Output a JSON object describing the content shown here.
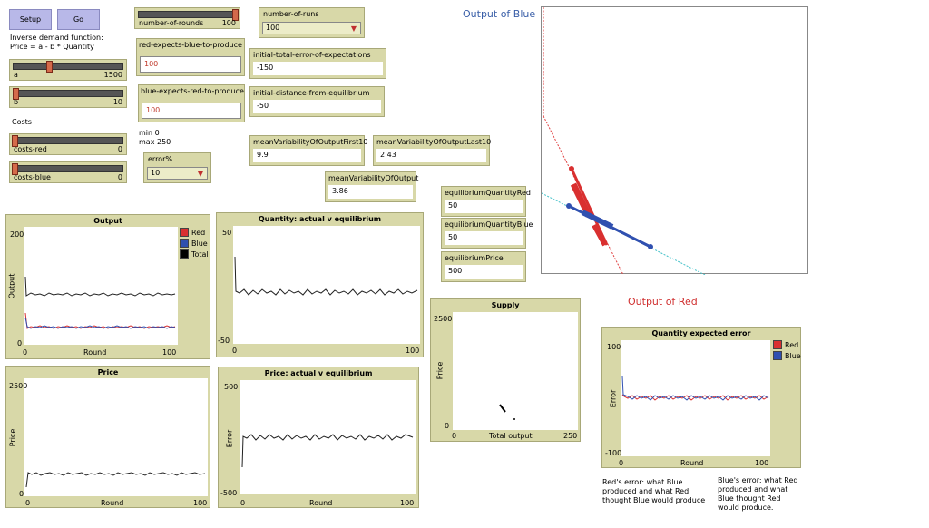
{
  "buttons": {
    "setup": "Setup",
    "go": "Go"
  },
  "notes": {
    "demand": "Inverse demand function:\nPrice = a - b * Quantity",
    "costs": "Costs",
    "error_range": "min 0\nmax 250",
    "red_error": "Red's error: what Blue\nproduced and what Red\nthought Blue would produce",
    "blue_error": "Blue's error: what Red\nproduced and what\nBlue thought Red\nwould produce."
  },
  "sliders": {
    "a": {
      "label": "a",
      "value": "1500",
      "fraction": 0.33
    },
    "b": {
      "label": "b",
      "value": "10",
      "fraction": 0.02
    },
    "costs_red": {
      "label": "costs-red",
      "value": "0",
      "fraction": 0.0
    },
    "costs_blue": {
      "label": "costs-blue",
      "value": "0",
      "fraction": 0.0
    },
    "rounds": {
      "label": "number-of-rounds",
      "value": "100",
      "fraction": 1.0
    }
  },
  "choosers": {
    "runs": {
      "label": "number-of-runs",
      "value": "100"
    },
    "error": {
      "label": "error%",
      "value": "10"
    }
  },
  "inputs": {
    "red_expects": {
      "label": "red-expects-blue-to-produce",
      "value": "100"
    },
    "blue_expects": {
      "label": "blue-expects-red-to-produce",
      "value": "100"
    }
  },
  "monitors": {
    "init_total_error": {
      "label": "initial-total-error-of-expectations",
      "value": "-150"
    },
    "init_distance": {
      "label": "initial-distance-from-equilibrium",
      "value": "-50"
    },
    "var_first10": {
      "label": "meanVariabilityOfOutputFirst10",
      "value": "9.9"
    },
    "var_last10": {
      "label": "meanVariabilityOfOutputLast10",
      "value": "2.43"
    },
    "var_output": {
      "label": "meanVariabilityOfOutput",
      "value": "3.86"
    },
    "eq_q_red": {
      "label": "equilibriumQuantityRed",
      "value": "50"
    },
    "eq_q_blue": {
      "label": "equilibriumQuantityBlue",
      "value": "50"
    },
    "eq_price": {
      "label": "equilibriumPrice",
      "value": "500"
    }
  },
  "view": {
    "output_of_blue": "Output of Blue",
    "output_of_red": "Output of Red",
    "colors": {
      "red": "#d93030",
      "blue": "#3050b0",
      "title_blue": "#3a5fa8",
      "title_red": "#d03030",
      "teal": "#40c0c8"
    }
  },
  "plots": {
    "output": {
      "title": "Output",
      "ylabel": "Output",
      "xlabel": "Round",
      "ymin": "0",
      "ymax": "200",
      "xmin": "0",
      "xmax": "100",
      "legend": [
        "Red",
        "Blue",
        "Total"
      ]
    },
    "quantity": {
      "title": "Quantity: actual v equilibrium",
      "ymin": "-50",
      "ymax": "50",
      "xmin": "0",
      "xmax": "100"
    },
    "price": {
      "title": "Price",
      "ylabel": "Price",
      "xlabel": "Round",
      "ymin": "0",
      "ymax": "2500",
      "xmin": "0",
      "xmax": "100"
    },
    "price_eq": {
      "title": "Price: actual v equilibrium",
      "ylabel": "Error",
      "xlabel": "Round",
      "ymin": "-500",
      "ymax": "500",
      "xmin": "0",
      "xmax": "100"
    },
    "supply": {
      "title": "Supply",
      "ylabel": "Price",
      "xlabel": "Total output",
      "ymin": "0",
      "ymax": "2500",
      "xmin": "0",
      "xmax": "250"
    },
    "qerror": {
      "title": "Quantity expected error",
      "ylabel": "Error",
      "xlabel": "Round",
      "ymin": "-100",
      "ymax": "100",
      "xmin": "0",
      "xmax": "100",
      "legend": [
        "Red",
        "Blue"
      ]
    }
  }
}
